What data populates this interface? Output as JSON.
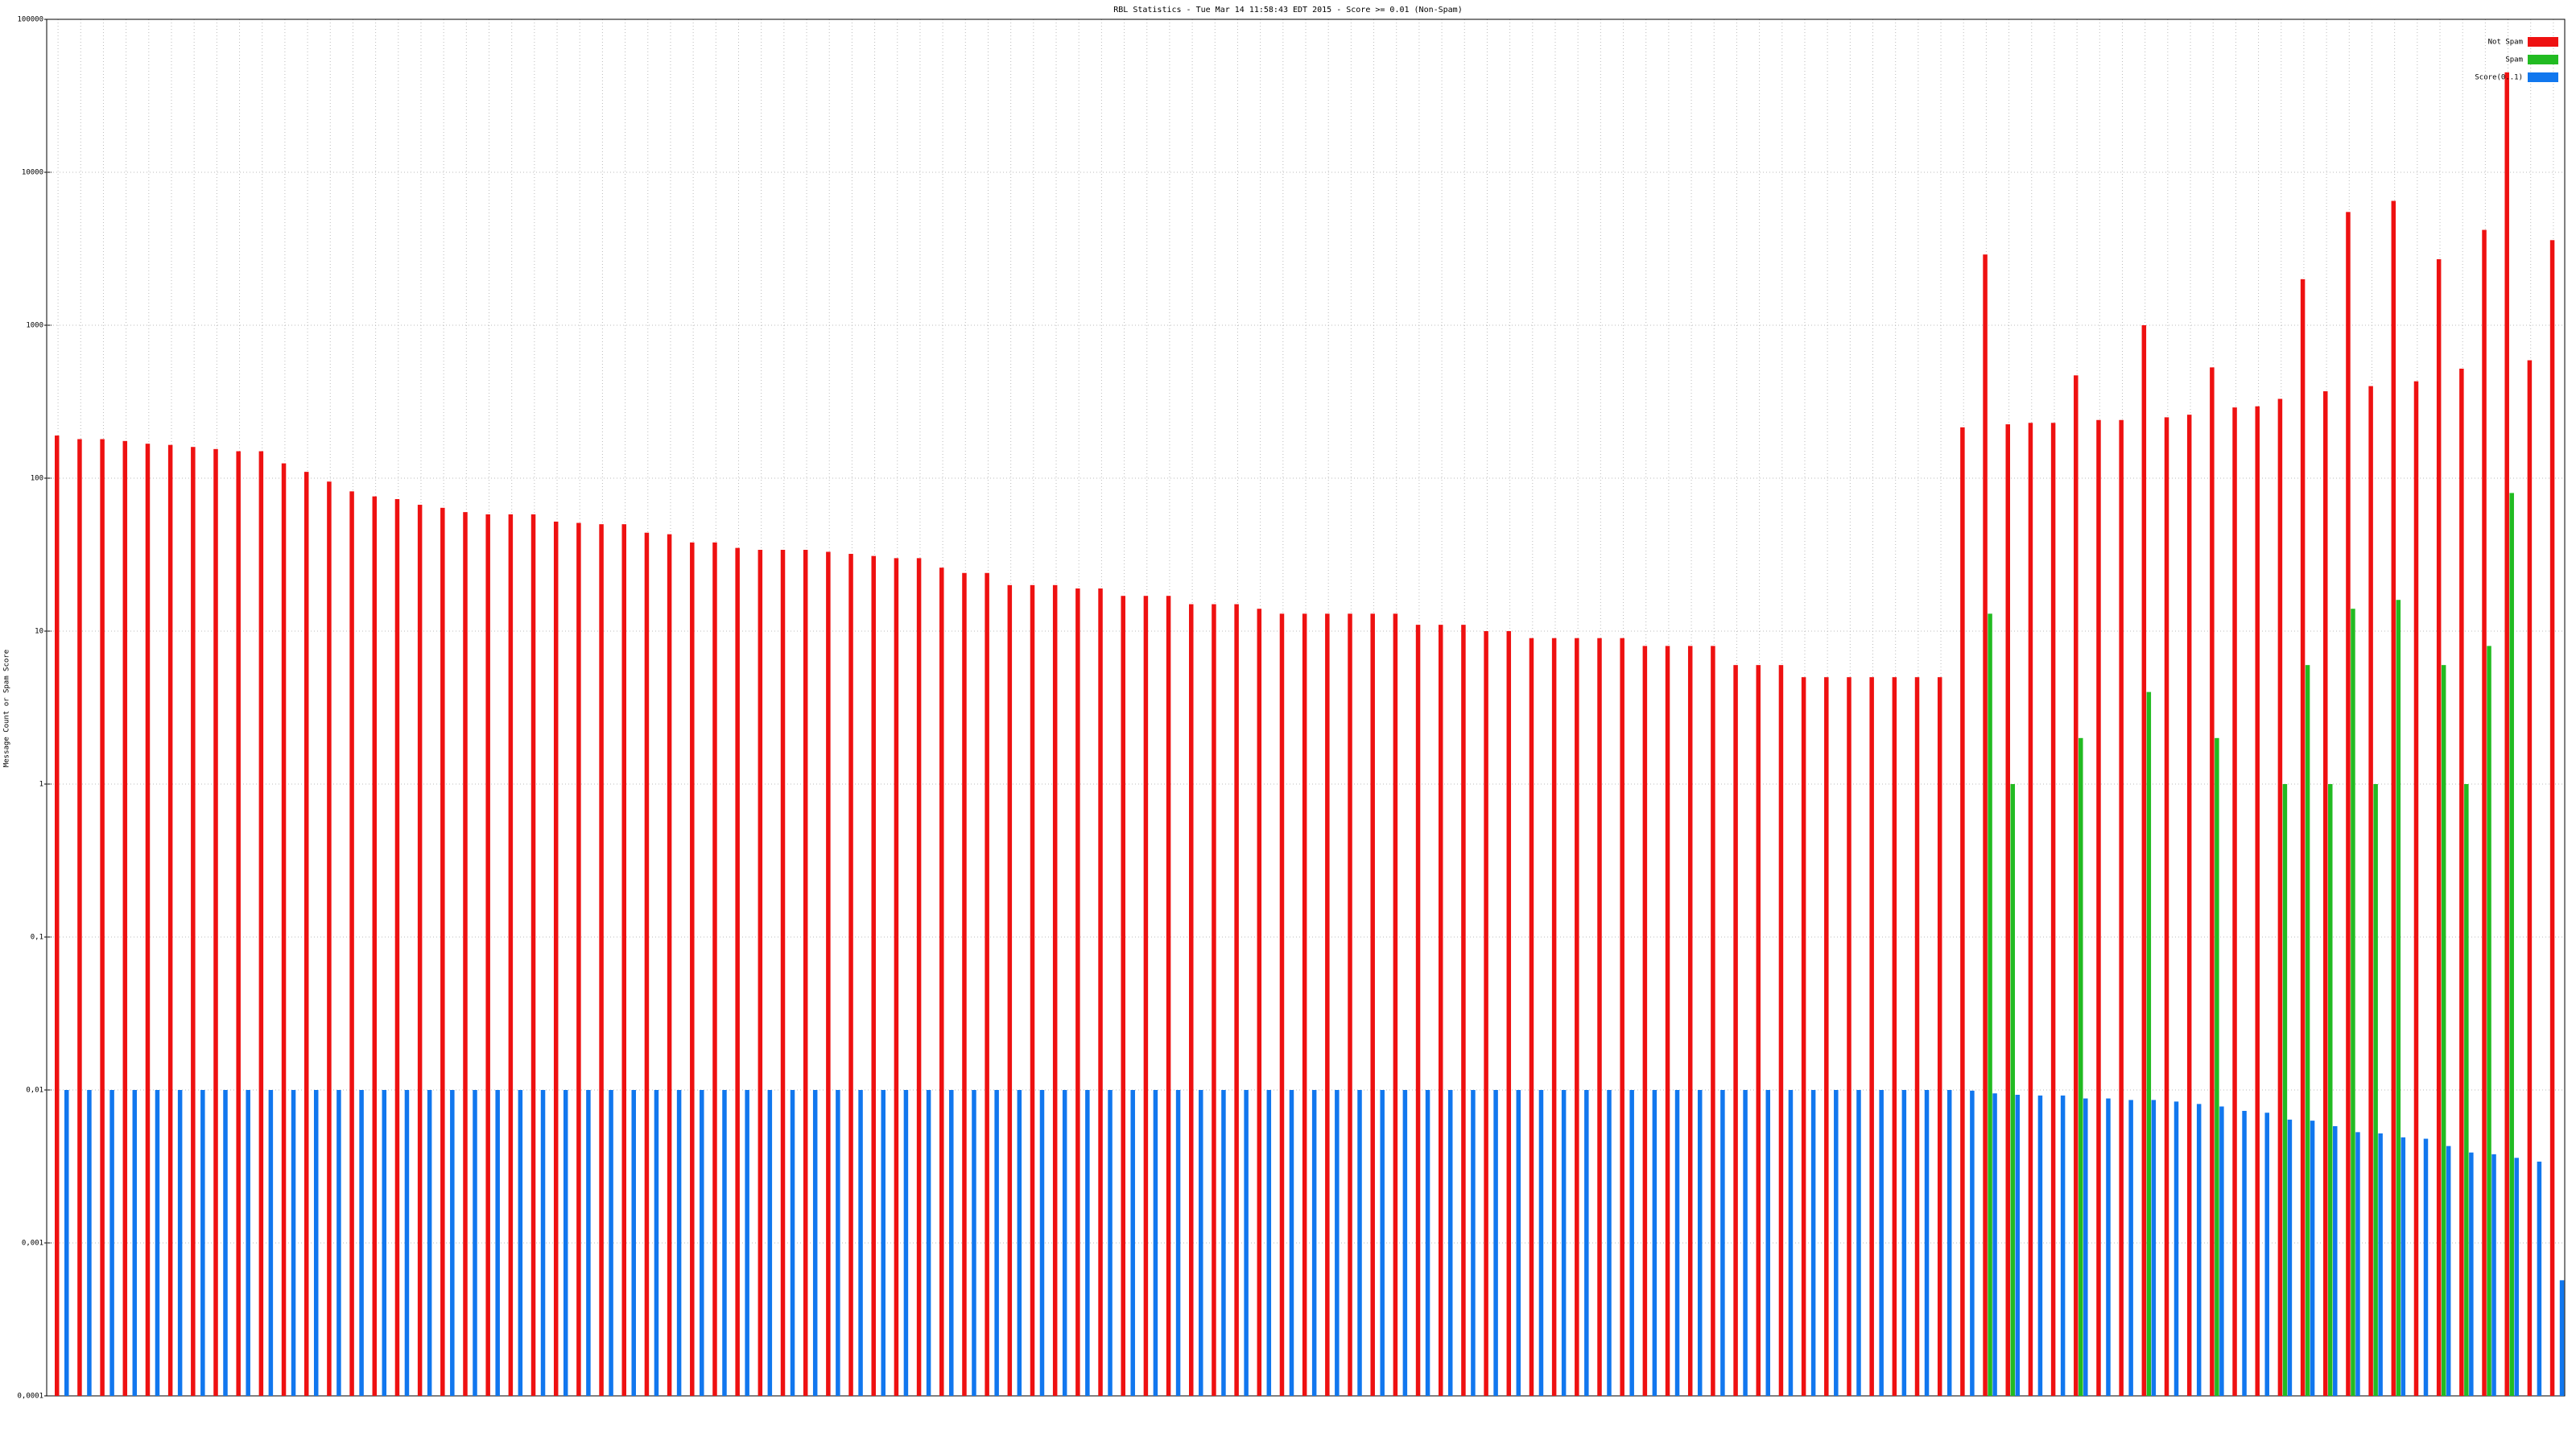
{
  "chart_data": {
    "type": "bar",
    "title": "RBL Statistics - Tue Mar 14 11:58:43 EDT 2015 - Score >= 0.01 (Non-Spam)",
    "y_label": "Message Count or Spam Score",
    "log_scale": true,
    "grid": true,
    "legend": "top-right",
    "ylim": [
      0.0001,
      100000
    ],
    "yticks": [
      {
        "value": 0.0001,
        "label": "0,0001"
      },
      {
        "value": 0.001,
        "label": "0,001"
      },
      {
        "value": 0.01,
        "label": "0,01"
      },
      {
        "value": 0.1,
        "label": "0,1"
      },
      1,
      10,
      100,
      1000,
      10000,
      100000
    ],
    "categories": [
      null,
      null,
      null,
      null,
      null,
      null,
      null,
      null,
      null,
      null,
      null,
      null,
      null,
      null,
      null,
      null,
      null,
      null,
      null,
      null,
      null,
      null,
      null,
      null,
      null,
      null,
      null,
      null,
      null,
      null,
      null,
      null,
      null,
      null,
      null,
      null,
      null,
      null,
      null,
      null,
      null,
      null,
      null,
      null,
      null,
      null,
      null,
      null,
      null,
      null,
      null,
      null,
      null,
      null,
      null,
      null,
      null,
      null,
      null,
      null,
      null,
      null,
      null,
      null,
      null,
      null,
      null,
      null,
      null,
      null,
      null,
      null,
      null,
      null,
      null,
      null,
      null,
      null,
      null,
      null,
      null,
      null,
      null,
      null,
      null,
      null,
      null,
      null,
      null,
      null,
      null,
      null,
      null,
      null,
      null,
      null,
      null,
      null,
      null,
      null,
      null,
      null,
      null,
      null,
      null,
      null,
      null,
      null,
      null,
      null,
      null
    ],
    "series": [
      {
        "name": "Not Spam",
        "color": "#ee1111",
        "values": [
          190,
          180,
          180,
          175,
          168,
          165,
          160,
          155,
          150,
          150,
          125,
          110,
          95,
          82,
          76,
          73,
          67,
          64,
          60,
          58,
          58,
          58,
          52,
          51,
          50,
          50,
          44,
          43,
          38,
          38,
          35,
          34,
          34,
          34,
          33,
          32,
          31,
          30,
          30,
          26,
          24,
          24,
          20,
          20,
          20,
          19,
          19,
          17,
          17,
          17,
          15,
          15,
          15,
          14,
          13,
          13,
          13,
          13,
          13,
          13,
          11,
          11,
          11,
          10,
          10,
          9,
          9,
          9,
          9,
          9,
          8,
          8,
          8,
          8,
          6,
          6,
          6,
          5,
          5,
          5,
          5,
          5,
          5,
          5,
          215,
          2900,
          225,
          230,
          230,
          470,
          240,
          240,
          1000,
          250,
          260,
          530,
          290,
          295,
          330,
          2000,
          370,
          5500,
          400,
          6500,
          430,
          2700,
          520,
          4200,
          45000,
          590,
          3600
        ]
      },
      {
        "name": "Spam",
        "color": "#22bb22",
        "values": [
          null,
          null,
          null,
          null,
          null,
          null,
          null,
          null,
          null,
          null,
          null,
          null,
          null,
          null,
          null,
          null,
          null,
          null,
          null,
          null,
          null,
          null,
          null,
          null,
          null,
          null,
          null,
          null,
          null,
          null,
          null,
          null,
          null,
          null,
          null,
          null,
          null,
          null,
          null,
          null,
          null,
          null,
          null,
          null,
          null,
          null,
          null,
          null,
          null,
          null,
          null,
          null,
          null,
          null,
          null,
          null,
          null,
          null,
          null,
          null,
          null,
          null,
          null,
          null,
          null,
          null,
          null,
          null,
          null,
          null,
          null,
          null,
          null,
          null,
          null,
          null,
          null,
          null,
          null,
          null,
          null,
          null,
          null,
          null,
          null,
          13,
          1,
          null,
          null,
          2,
          null,
          null,
          4,
          null,
          null,
          2,
          null,
          null,
          1,
          6,
          1,
          14,
          1,
          16,
          null,
          6,
          1,
          8,
          80,
          null,
          null
        ]
      },
      {
        "name": "Score(0..1)",
        "color": "#1177ee",
        "values": [
          0.01,
          0.01,
          0.01,
          0.01,
          0.01,
          0.01,
          0.01,
          0.01,
          0.01,
          0.01,
          0.01,
          0.01,
          0.01,
          0.01,
          0.01,
          0.01,
          0.01,
          0.01,
          0.01,
          0.01,
          0.01,
          0.01,
          0.01,
          0.01,
          0.01,
          0.01,
          0.01,
          0.01,
          0.01,
          0.01,
          0.01,
          0.01,
          0.01,
          0.01,
          0.01,
          0.01,
          0.01,
          0.01,
          0.01,
          0.01,
          0.01,
          0.01,
          0.01,
          0.01,
          0.01,
          0.01,
          0.01,
          0.01,
          0.01,
          0.01,
          0.01,
          0.01,
          0.01,
          0.01,
          0.01,
          0.01,
          0.01,
          0.01,
          0.01,
          0.01,
          0.01,
          0.01,
          0.01,
          0.01,
          0.01,
          0.01,
          0.01,
          0.01,
          0.01,
          0.01,
          0.01,
          0.01,
          0.01,
          0.01,
          0.01,
          0.01,
          0.01,
          0.01,
          0.01,
          0.01,
          0.01,
          0.01,
          0.01,
          0.01,
          0.0099,
          0.0095,
          0.0093,
          0.0092,
          0.0092,
          0.0088,
          0.0088,
          0.0086,
          0.0086,
          0.0084,
          0.0081,
          0.0078,
          0.0073,
          0.0071,
          0.0064,
          0.0063,
          0.0058,
          0.0053,
          0.0052,
          0.0049,
          0.0048,
          0.0043,
          0.0039,
          0.0038,
          0.0036,
          0.0034,
          0.00057
        ]
      }
    ]
  }
}
